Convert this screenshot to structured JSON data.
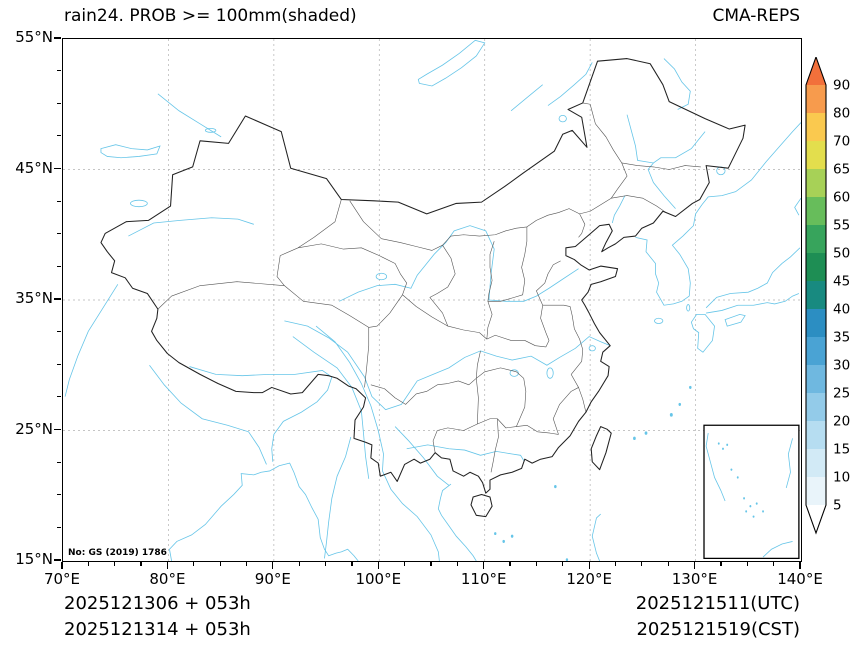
{
  "header": {
    "title": "rain24. PROB >= 100mm(shaded)",
    "model": "CMA-REPS"
  },
  "map": {
    "license": "No: GS (2019) 1786"
  },
  "axes": {
    "lon_min": 70,
    "lon_max": 140,
    "lat_min": 15,
    "lat_max": 55,
    "major_step": 10,
    "minor_step": 2.5,
    "lon_labels": [
      "70°E",
      "80°E",
      "90°E",
      "100°E",
      "110°E",
      "120°E",
      "130°E",
      "140°E"
    ],
    "lat_labels": [
      "55°N",
      "45°N",
      "35°N",
      "25°N",
      "15°N"
    ]
  },
  "colorbar": {
    "labels": [
      "90",
      "80",
      "70",
      "65",
      "60",
      "55",
      "50",
      "45",
      "40",
      "35",
      "30",
      "25",
      "20",
      "15",
      "10",
      "5"
    ],
    "colors_top_to_bottom": [
      "#f2703b",
      "#f79b4d",
      "#fac94f",
      "#e3de4d",
      "#a7d157",
      "#67bd5b",
      "#37a45c",
      "#1e8e54",
      "#188a80",
      "#2c8ec2",
      "#4aa3d4",
      "#6fb8e0",
      "#93cbe9",
      "#b6ddf1",
      "#d2eaf6",
      "#e9f4fa",
      "#ffffff"
    ]
  },
  "footer": {
    "init_utc": "2025121306 + 053h",
    "init_cst": "2025121314 + 053h",
    "valid_utc": "2025121511(UTC)",
    "valid_cst": "2025121519(CST)"
  }
}
